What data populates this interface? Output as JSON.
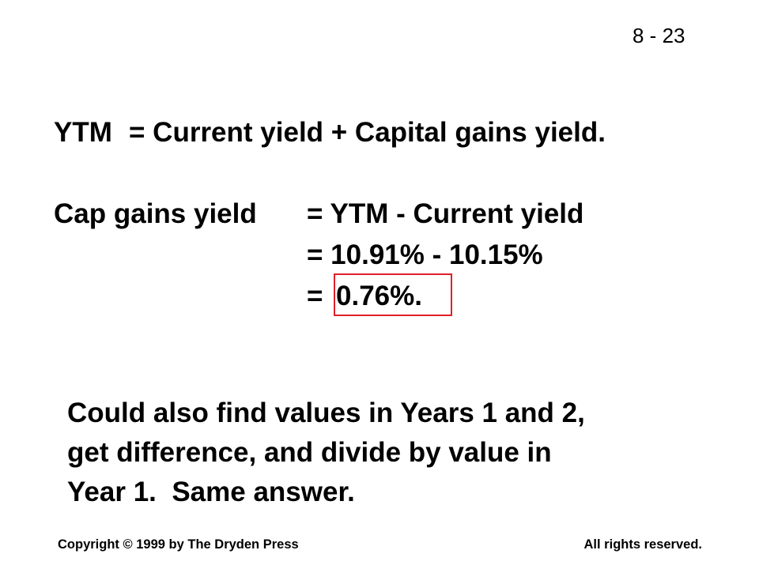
{
  "slide_number": "8 - 23",
  "equations": [
    {
      "label": "YTM",
      "expression": "= Current yield + Capital gains yield."
    },
    {
      "label": "Cap gains yield",
      "expression": "= YTM - Current yield"
    },
    {
      "expression": "= 10.91% - 10.15%"
    },
    {
      "expression": "=",
      "result": "0.76%."
    }
  ],
  "note": [
    "Could also find values in Years 1 and 2,",
    "get difference, and divide by value in",
    "Year 1.  Same answer."
  ],
  "footer": {
    "left": "Copyright © 1999 by The Dryden Press",
    "right": "All rights reserved."
  }
}
